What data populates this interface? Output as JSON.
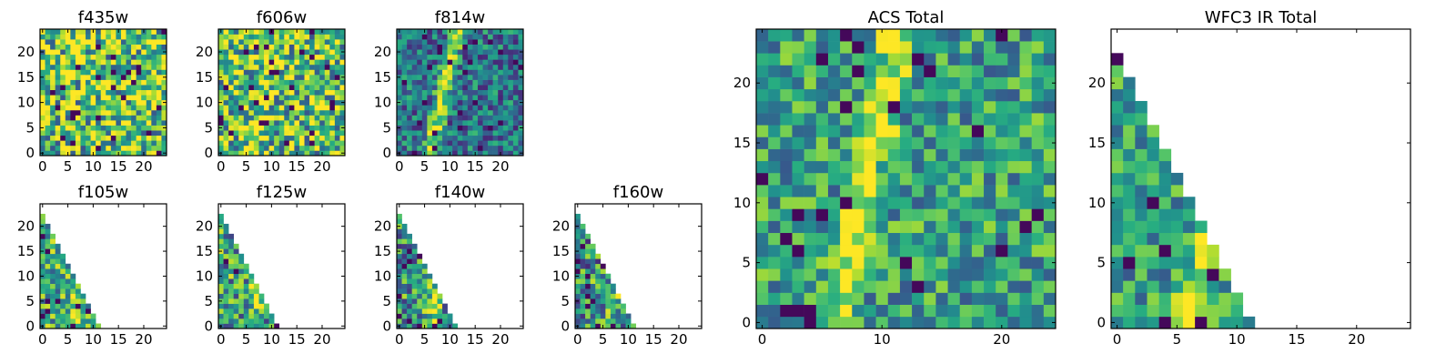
{
  "figure": {
    "background": "#ffffff",
    "colormap": "viridis"
  },
  "chart_data": [
    {
      "id": "f435w",
      "type": "heatmap",
      "title": "f435w",
      "xlim": [
        -0.5,
        24.5
      ],
      "ylim": [
        -0.5,
        24.5
      ],
      "xticks": [
        0,
        5,
        10,
        15,
        20
      ],
      "yticks": [
        0,
        5,
        10,
        15,
        20
      ],
      "coverage": "full",
      "seed": 11,
      "base": 0.72,
      "noise": 0.5,
      "streak": 0.0
    },
    {
      "id": "f606w",
      "type": "heatmap",
      "title": "f606w",
      "xlim": [
        -0.5,
        24.5
      ],
      "ylim": [
        -0.5,
        24.5
      ],
      "xticks": [
        0,
        5,
        10,
        15,
        20
      ],
      "yticks": [
        0,
        5,
        10,
        15,
        20
      ],
      "coverage": "full",
      "seed": 23,
      "base": 0.68,
      "noise": 0.45,
      "streak": 0.25
    },
    {
      "id": "f814w",
      "type": "heatmap",
      "title": "f814w",
      "xlim": [
        -0.5,
        24.5
      ],
      "ylim": [
        -0.5,
        24.5
      ],
      "xticks": [
        0,
        5,
        10,
        15,
        20
      ],
      "yticks": [
        0,
        5,
        10,
        15,
        20
      ],
      "coverage": "full",
      "seed": 37,
      "base": 0.38,
      "noise": 0.3,
      "streak": 0.6
    },
    {
      "id": "f105w",
      "type": "heatmap",
      "title": "f105w",
      "xlim": [
        -0.5,
        24.5
      ],
      "ylim": [
        -0.5,
        24.5
      ],
      "xticks": [
        0,
        5,
        10,
        15,
        20
      ],
      "yticks": [
        0,
        5,
        10,
        15,
        20
      ],
      "coverage": "triangle",
      "seed": 41,
      "base": 0.6,
      "noise": 0.35,
      "streak": 0.3
    },
    {
      "id": "f125w",
      "type": "heatmap",
      "title": "f125w",
      "xlim": [
        -0.5,
        24.5
      ],
      "ylim": [
        -0.5,
        24.5
      ],
      "xticks": [
        0,
        5,
        10,
        15,
        20
      ],
      "yticks": [
        0,
        5,
        10,
        15,
        20
      ],
      "coverage": "triangle",
      "seed": 53,
      "base": 0.55,
      "noise": 0.4,
      "streak": 0.3
    },
    {
      "id": "f140w",
      "type": "heatmap",
      "title": "f140w",
      "xlim": [
        -0.5,
        24.5
      ],
      "ylim": [
        -0.5,
        24.5
      ],
      "xticks": [
        0,
        5,
        10,
        15,
        20
      ],
      "yticks": [
        0,
        5,
        10,
        15,
        20
      ],
      "coverage": "triangle",
      "seed": 67,
      "base": 0.5,
      "noise": 0.4,
      "streak": 0.35
    },
    {
      "id": "f160w",
      "type": "heatmap",
      "title": "f160w",
      "xlim": [
        -0.5,
        24.5
      ],
      "ylim": [
        -0.5,
        24.5
      ],
      "xticks": [
        0,
        5,
        10,
        15,
        20
      ],
      "yticks": [
        0,
        5,
        10,
        15,
        20
      ],
      "coverage": "triangle",
      "seed": 79,
      "base": 0.5,
      "noise": 0.42,
      "streak": 0.35
    },
    {
      "id": "acs_total",
      "type": "heatmap",
      "title": "ACS Total",
      "xlim": [
        -0.5,
        24.5
      ],
      "ylim": [
        -0.5,
        24.5
      ],
      "xticks": [
        0,
        10,
        20
      ],
      "yticks": [
        0,
        5,
        10,
        15,
        20
      ],
      "coverage": "full",
      "seed": 97,
      "base": 0.55,
      "noise": 0.3,
      "streak": 0.45
    },
    {
      "id": "wfc3_ir_total",
      "type": "heatmap",
      "title": "WFC3 IR Total",
      "xlim": [
        -0.5,
        24.5
      ],
      "ylim": [
        -0.5,
        24.5
      ],
      "xticks": [
        0,
        5,
        10,
        15,
        20
      ],
      "yticks": [
        0,
        5,
        10,
        15,
        20
      ],
      "coverage": "triangle",
      "seed": 103,
      "base": 0.55,
      "noise": 0.3,
      "streak": 0.35
    }
  ]
}
